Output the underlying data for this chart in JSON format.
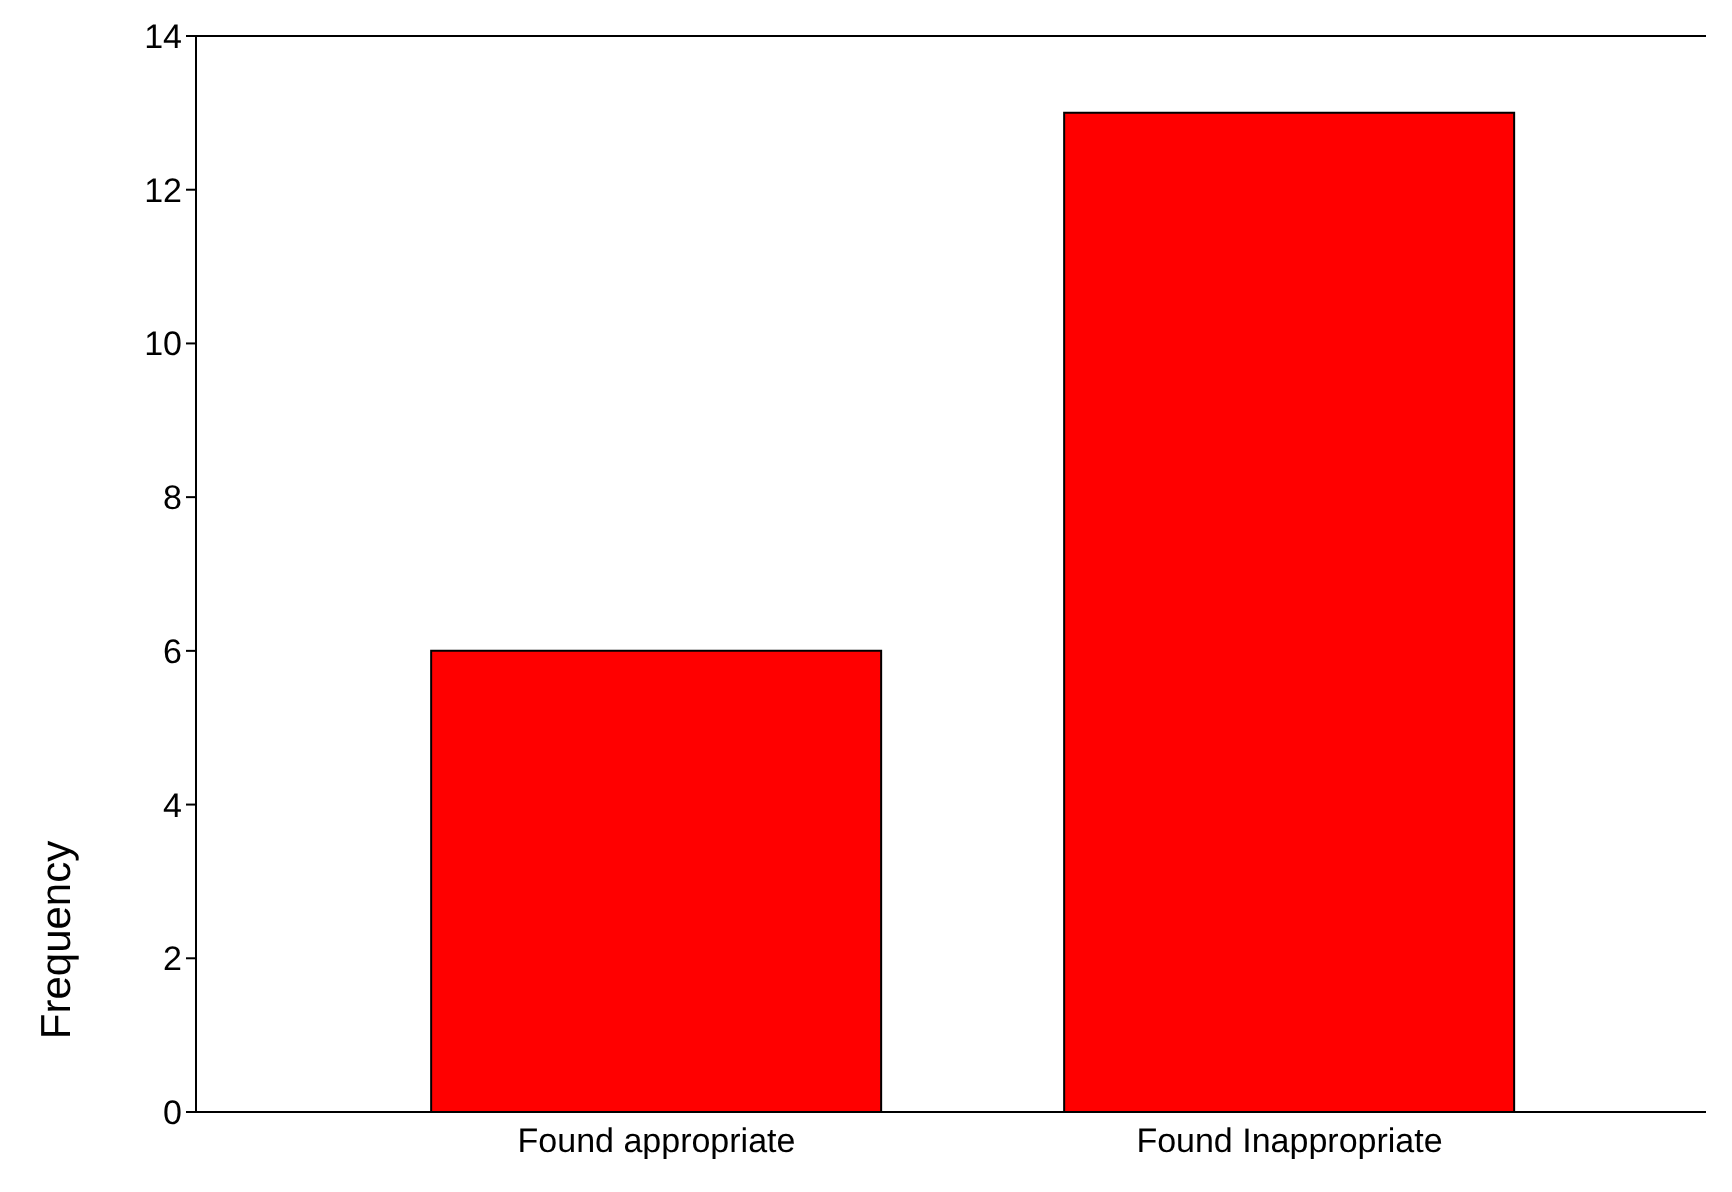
{
  "chart_data": {
    "type": "bar",
    "ylabel": "Frequency",
    "categories": [
      "Found appropriate",
      "Found Inappropriate"
    ],
    "values": [
      6,
      13
    ],
    "color": "#ff0000",
    "ylim": [
      0,
      14
    ],
    "yticks": [
      0,
      2,
      4,
      6,
      8,
      10,
      12,
      14
    ],
    "grid": false
  }
}
